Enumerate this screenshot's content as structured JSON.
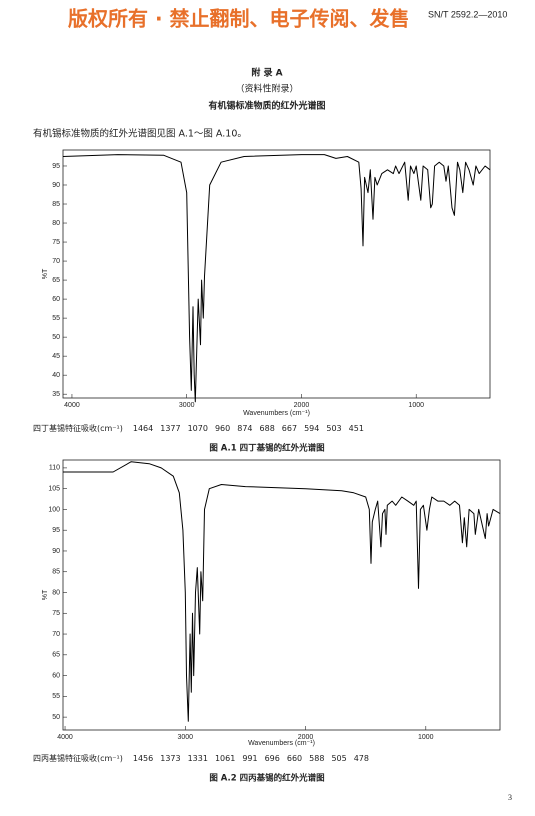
{
  "header": {
    "watermark": "版权所有 ·  禁止翻制、电子传阅、发售",
    "standard_number": "SN/T 2592.2—2010"
  },
  "appendix": {
    "title": "附 录 A",
    "note": "（资料性附录）",
    "heading": "有机锡标准物质的红外光谱图"
  },
  "intro": "有机锡标准物质的红外光谱图见图 A.1～图 A.10。",
  "figures": [
    {
      "chart_data": {
        "type": "line",
        "x_label": "Wavenumbers (cm⁻¹)",
        "y_label": "%T",
        "color": "#000000",
        "xlim": [
          4078,
          357
        ],
        "ylim": [
          34,
          99.2
        ],
        "xticks": [
          4000,
          3000,
          2000,
          1000
        ],
        "yticks": [
          35,
          40,
          45,
          50,
          55,
          60,
          65,
          70,
          75,
          80,
          85,
          90,
          95
        ],
        "x": [
          4078,
          3600,
          3200,
          3050,
          3000,
          2975,
          2960,
          2945,
          2935,
          2925,
          2900,
          2880,
          2870,
          2855,
          2845,
          2800,
          2700,
          2500,
          2000,
          1800,
          1700,
          1600,
          1500,
          1480,
          1464,
          1450,
          1420,
          1400,
          1377,
          1360,
          1340,
          1300,
          1250,
          1200,
          1180,
          1150,
          1100,
          1070,
          1050,
          1020,
          1000,
          960,
          940,
          900,
          874,
          860,
          840,
          800,
          760,
          740,
          720,
          688,
          667,
          640,
          620,
          594,
          570,
          540,
          503,
          480,
          451,
          400,
          357
        ],
        "values": [
          97.5,
          98,
          97.8,
          96,
          88,
          50,
          36,
          58,
          40,
          33,
          60,
          48,
          65,
          55,
          66,
          90,
          96,
          97.5,
          98,
          98,
          97,
          97.5,
          96,
          89,
          74,
          92,
          88,
          94,
          81,
          92,
          90,
          93,
          94,
          93,
          95,
          93,
          96,
          86,
          95,
          93,
          95,
          86,
          95,
          94,
          84,
          85,
          95,
          96,
          95,
          91,
          95,
          84,
          82,
          96,
          94,
          88,
          96,
          94,
          90,
          95,
          93,
          95,
          94
        ]
      },
      "characteristic_label": "四丁基锡特征吸收(cm⁻¹)",
      "characteristic_values": [
        1464,
        1377,
        1070,
        960,
        874,
        688,
        667,
        594,
        503,
        451
      ],
      "caption": "图 A.1   四丁基锡的红外光谱图"
    },
    {
      "chart_data": {
        "type": "line",
        "x_label": "Wavenumbers (cm⁻¹)",
        "y_label": "%T",
        "color": "#000000",
        "xlim": [
          4017,
          383
        ],
        "ylim": [
          46.9,
          111.9
        ],
        "xticks": [
          4000,
          3000,
          2000,
          1000
        ],
        "yticks": [
          50,
          55,
          60,
          65,
          70,
          75,
          80,
          85,
          90,
          95,
          100,
          105,
          110
        ],
        "x": [
          4017,
          3800,
          3600,
          3450,
          3300,
          3200,
          3100,
          3050,
          3020,
          3000,
          2990,
          2975,
          2960,
          2950,
          2940,
          2930,
          2915,
          2900,
          2880,
          2870,
          2855,
          2840,
          2800,
          2700,
          2500,
          2000,
          1700,
          1600,
          1500,
          1470,
          1456,
          1445,
          1420,
          1400,
          1373,
          1360,
          1340,
          1331,
          1320,
          1280,
          1250,
          1200,
          1150,
          1100,
          1080,
          1061,
          1045,
          1020,
          991,
          970,
          950,
          900,
          850,
          800,
          760,
          720,
          696,
          680,
          660,
          640,
          600,
          588,
          560,
          505,
          490,
          478,
          440,
          383
        ],
        "values": [
          109,
          109,
          109,
          111.5,
          111,
          110,
          108,
          104,
          95,
          80,
          60,
          49,
          70,
          56,
          75,
          60,
          80,
          86,
          70,
          85,
          78,
          100,
          105,
          106,
          105.5,
          105,
          104.5,
          104,
          103,
          100,
          87,
          97,
          100,
          102,
          91,
          99,
          100,
          94,
          101,
          102,
          101,
          103,
          102,
          101,
          102,
          81,
          100,
          101,
          95,
          100,
          103,
          102,
          102,
          101,
          102,
          101,
          92,
          98,
          91,
          100,
          99,
          94,
          100,
          93,
          99,
          96,
          100,
          99
        ]
      },
      "characteristic_label": "四丙基锡特征吸收(cm⁻¹)",
      "characteristic_values": [
        1456,
        1373,
        1331,
        1061,
        991,
        696,
        660,
        588,
        505,
        478
      ],
      "caption": "图 A.2   四丙基锡的红外光谱图"
    }
  ],
  "page_number": 3
}
